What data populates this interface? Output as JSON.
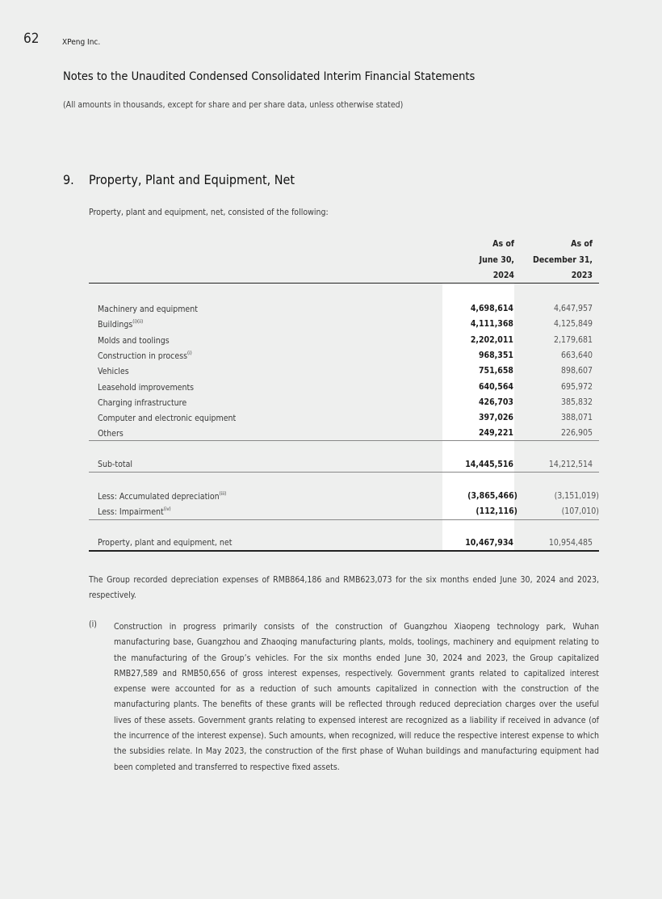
{
  "header": {
    "page_number": "62",
    "company": "XPeng Inc.",
    "title": "Notes to the Unaudited Condensed Consolidated Interim Financial Statements",
    "subtitle": "(All amounts in thousands, except for share and per share data, unless otherwise stated)"
  },
  "section": {
    "number": "9.",
    "title": "Property, Plant and Equipment, Net",
    "intro": "Property, plant and equipment, net, consisted of the following:"
  },
  "table": {
    "columns": [
      {
        "l1": "As of",
        "l2": "June 30,",
        "l3": "2024"
      },
      {
        "l1": "As of",
        "l2": "December 31,",
        "l3": "2023"
      }
    ],
    "rows": [
      {
        "label": "Machinery and equipment",
        "sup": "",
        "v2024": "4,698,614",
        "v2023": "4,647,957"
      },
      {
        "label": "Buildings",
        "sup": "(i)(ii)",
        "v2024": "4,111,368",
        "v2023": "4,125,849"
      },
      {
        "label": "Molds and toolings",
        "sup": "",
        "v2024": "2,202,011",
        "v2023": "2,179,681"
      },
      {
        "label": "Construction in process",
        "sup": "(i)",
        "v2024": "968,351",
        "v2023": "663,640"
      },
      {
        "label": "Vehicles",
        "sup": "",
        "v2024": "751,658",
        "v2023": "898,607"
      },
      {
        "label": "Leasehold improvements",
        "sup": "",
        "v2024": "640,564",
        "v2023": "695,972"
      },
      {
        "label": "Charging infrastructure",
        "sup": "",
        "v2024": "426,703",
        "v2023": "385,832"
      },
      {
        "label": "Computer and electronic equipment",
        "sup": "",
        "v2024": "397,026",
        "v2023": "388,071"
      },
      {
        "label": "Others",
        "sup": "",
        "v2024": "249,221",
        "v2023": "226,905"
      }
    ],
    "subtotal": {
      "label": "Sub-total",
      "v2024": "14,445,516",
      "v2023": "14,212,514"
    },
    "less": [
      {
        "label": "Less: Accumulated depreciation",
        "sup": "(iii)",
        "v2024": "(3,865,466)",
        "v2023": "(3,151,019)"
      },
      {
        "label": "Less: Impairment",
        "sup": "(iv)",
        "v2024": "(112,116)",
        "v2023": "(107,010)"
      }
    ],
    "net": {
      "label": "Property, plant and equipment, net",
      "v2024": "10,467,934",
      "v2023": "10,954,485"
    }
  },
  "body": {
    "depreciation_para": "The Group recorded depreciation expenses of RMB864,186 and RMB623,073 for the six months ended June 30, 2024 and 2023, respectively.",
    "footnotes": [
      {
        "mark": "(i)",
        "text": "Construction in progress primarily consists of the construction of Guangzhou Xiaopeng technology park, Wuhan manufacturing base, Guangzhou and Zhaoqing manufacturing plants, molds, toolings, machinery and equipment relating to the manufacturing of the Group’s vehicles. For the six months ended June 30, 2024 and 2023, the Group capitalized RMB27,589 and RMB50,656 of gross interest expenses, respectively. Government grants related to capitalized interest expense were accounted for as a reduction of such amounts capitalized in connection with the construction of the manufacturing plants. The benefits of these grants will be reflected through reduced depreciation charges over the useful lives of these assets. Government grants relating to expensed interest are recognized as a liability if received in advance (of the incurrence of the interest expense). Such amounts, when recognized, will reduce the respective interest expense to which the subsidies relate. In May 2023, the construction of the first phase of Wuhan buildings and manufacturing equipment had been completed and transferred to respective fixed assets."
      }
    ]
  }
}
